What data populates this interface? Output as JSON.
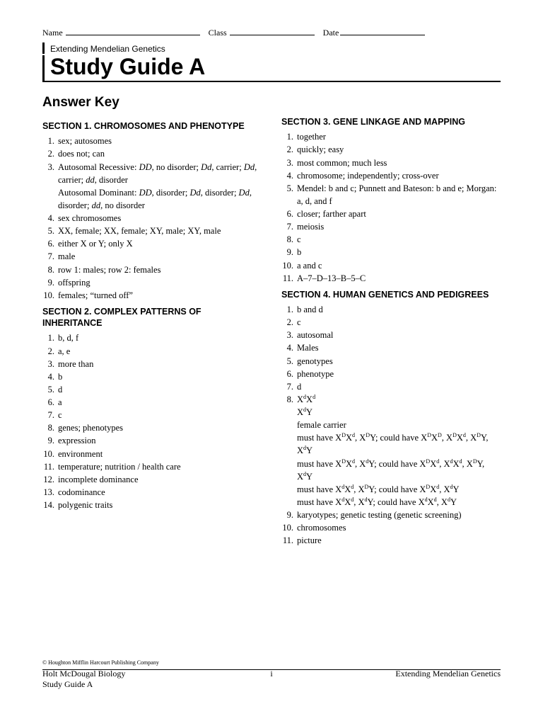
{
  "header": {
    "name_label": "Name",
    "class_label": "Class",
    "date_label": "Date",
    "subtitle": "Extending Mendelian Genetics",
    "title": "Study Guide A",
    "answer_key": "Answer Key"
  },
  "sections": {
    "s1": {
      "head": "SECTION 1. CHROMOSOMES AND PHENOTYPE",
      "items": [
        [
          "1.",
          "sex; autosomes"
        ],
        [
          "2.",
          "does not; can"
        ],
        [
          "3.",
          "Autosomal Recessive: <span class=\"italic\">DD</span>, no disorder; <span class=\"italic\">Dd</span>, carrier; <span class=\"italic\">Dd</span>, carrier; <span class=\"italic\">dd</span>, disorder<br>Autosomal Dominant: <span class=\"italic\">DD</span>, disorder; <span class=\"italic\">Dd</span>, disorder; <span class=\"italic\">Dd</span>, disorder; <span class=\"italic\">dd</span>, no disorder"
        ],
        [
          "4.",
          "sex chromosomes"
        ],
        [
          "5.",
          "XX, female; XX, female; XY, male; XY, male"
        ],
        [
          "6.",
          "either X or Y; only X"
        ],
        [
          "7.",
          "male"
        ],
        [
          "8.",
          "row 1: males; row 2: females"
        ],
        [
          "9.",
          "offspring"
        ],
        [
          "10.",
          "females; “turned off”"
        ]
      ]
    },
    "s2": {
      "head": "SECTION 2. COMPLEX PATTERNS OF INHERITANCE",
      "items": [
        [
          "1.",
          "b, d, f"
        ],
        [
          "2.",
          "a, e"
        ],
        [
          "3.",
          "more than"
        ],
        [
          "4.",
          "b"
        ],
        [
          "5.",
          "d"
        ],
        [
          "6.",
          "a"
        ],
        [
          "7.",
          "c"
        ],
        [
          "8.",
          "genes; phenotypes"
        ],
        [
          "9.",
          "expression"
        ],
        [
          "10.",
          "environment"
        ],
        [
          "11.",
          "temperature; nutrition / health care"
        ],
        [
          "12.",
          "incomplete dominance"
        ],
        [
          "13.",
          "codominance"
        ],
        [
          "14.",
          "polygenic traits"
        ]
      ]
    },
    "s3": {
      "head": "SECTION 3. GENE LINKAGE AND MAPPING",
      "items": [
        [
          "1.",
          "together"
        ],
        [
          "2.",
          "quickly; easy"
        ],
        [
          "3.",
          "most common; much less"
        ],
        [
          "4.",
          "chromosome; independently; cross-over"
        ],
        [
          "5.",
          "Mendel: b and c; Punnett and Bateson: b and e; Morgan: a, d, and f"
        ],
        [
          "6.",
          "closer; farther apart"
        ],
        [
          "7.",
          "meiosis"
        ],
        [
          "8.",
          "c"
        ],
        [
          "9.",
          "b"
        ],
        [
          "10.",
          "a and c"
        ],
        [
          "11.",
          "A–7–D–13–B–5–C"
        ]
      ]
    },
    "s4": {
      "head": "SECTION 4. HUMAN GENETICS AND PEDIGREES",
      "items": [
        [
          "1.",
          "b and d"
        ],
        [
          "2.",
          "c"
        ],
        [
          "3.",
          "autosomal"
        ],
        [
          "4.",
          "Males"
        ],
        [
          "5.",
          "genotypes"
        ],
        [
          "6.",
          "phenotype"
        ],
        [
          "7.",
          "d"
        ],
        [
          "8.",
          "X<sup>d</sup>X<sup>d</sup><br>X<sup>d</sup>Y<br>female carrier<br>must have X<sup>D</sup>X<sup>d</sup>, X<sup>D</sup>Y; could have X<sup>D</sup>X<sup>D</sup>, X<sup>D</sup>X<sup>d</sup>, X<sup>D</sup>Y, X<sup>d</sup>Y<br>must have X<sup>D</sup>X<sup>d</sup>, X<sup>d</sup>Y; could have X<sup>D</sup>X<sup>d</sup>, X<sup>d</sup>X<sup>d</sup>, X<sup>D</sup>Y, X<sup>d</sup>Y<br>must have X<sup>d</sup>X<sup>d</sup>, X<sup>D</sup>Y; could have X<sup>D</sup>X<sup>d</sup>, X<sup>d</sup>Y<br>must have X<sup>d</sup>X<sup>d</sup>, X<sup>d</sup>Y; could have X<sup>d</sup>X<sup>d</sup>, X<sup>d</sup>Y"
        ],
        [
          "9.",
          "karyotypes; genetic testing (genetic screening)"
        ],
        [
          "10.",
          "chromosomes"
        ],
        [
          "11.",
          "picture"
        ]
      ]
    }
  },
  "copyright": "© Houghton Mifflin Harcourt Publishing Company",
  "footer": {
    "left1": "Holt McDougal Biology",
    "left2": "Study Guide A",
    "center": "i",
    "right": "Extending Mendelian Genetics"
  }
}
